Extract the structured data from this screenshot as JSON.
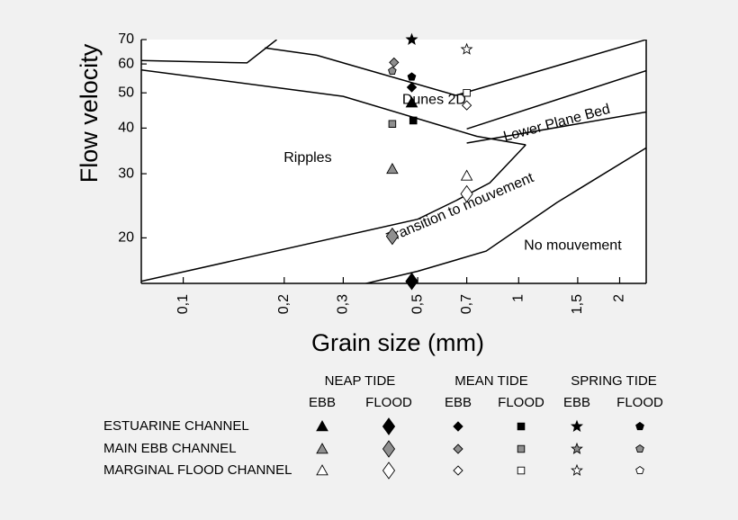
{
  "chart_data": {
    "type": "scatter",
    "title": "",
    "xlabel": "Grain size (mm)",
    "ylabel": "Flow velocity",
    "x_scale": "log",
    "y_scale": "log",
    "xlim": [
      0.075,
      2.4
    ],
    "ylim": [
      15,
      70
    ],
    "x_ticks": [
      {
        "value": 0.1,
        "label": "0,1"
      },
      {
        "value": 0.2,
        "label": "0,2"
      },
      {
        "value": 0.3,
        "label": "0,3"
      },
      {
        "value": 0.5,
        "label": "0,5"
      },
      {
        "value": 0.7,
        "label": "0,7"
      },
      {
        "value": 1,
        "label": "1"
      },
      {
        "value": 1.5,
        "label": "1,5"
      },
      {
        "value": 2,
        "label": "2"
      }
    ],
    "y_ticks": [
      {
        "value": 20,
        "label": "20"
      },
      {
        "value": 30,
        "label": "30"
      },
      {
        "value": 40,
        "label": "40"
      },
      {
        "value": 50,
        "label": "50"
      },
      {
        "value": 60,
        "label": "60"
      },
      {
        "value": 70,
        "label": "70"
      }
    ],
    "boundaries": [
      {
        "id": "ripples-upper",
        "points": [
          [
            0.075,
            61.3
          ],
          [
            0.155,
            60.4
          ],
          [
            0.19,
            70
          ]
        ]
      },
      {
        "id": "dunes-upper",
        "points": [
          [
            0.175,
            66.4
          ],
          [
            0.25,
            63.4
          ],
          [
            0.65,
            49.2
          ],
          [
            2.4,
            70
          ]
        ]
      },
      {
        "id": "ripples-lower",
        "points": [
          [
            0.075,
            57.8
          ],
          [
            0.3,
            48.9
          ],
          [
            0.75,
            38.0
          ],
          [
            1.05,
            36.0
          ]
        ]
      },
      {
        "id": "dunes-lower",
        "points": [
          [
            0.7,
            39.8
          ],
          [
            2.4,
            57.5
          ]
        ]
      },
      {
        "id": "plane-bed-lower",
        "points": [
          [
            0.7,
            36.4
          ],
          [
            2.4,
            44.3
          ]
        ]
      },
      {
        "id": "movement-threshold",
        "points": [
          [
            0.075,
            15.2
          ],
          [
            0.5,
            22.5
          ],
          [
            0.65,
            25.3
          ],
          [
            0.82,
            28.3
          ],
          [
            1.05,
            36.0
          ]
        ]
      },
      {
        "id": "no-movement-lower",
        "points": [
          [
            0.32,
            14.7
          ],
          [
            0.5,
            16.2
          ],
          [
            0.8,
            18.4
          ],
          [
            1.3,
            25.0
          ],
          [
            2.4,
            35.3
          ]
        ]
      }
    ],
    "region_labels": [
      {
        "text": "Ripples",
        "x": 0.235,
        "y": 33.1,
        "rotate": 0
      },
      {
        "text": "Dunes 2D",
        "x": 0.56,
        "y": 47.7,
        "rotate": 0
      },
      {
        "text": "Lower Plane Bed",
        "x": 1.3,
        "y": 41.2,
        "rotate": -15
      },
      {
        "text": "Transition to mouvement",
        "x": 0.67,
        "y": 24.1,
        "rotate": -23
      },
      {
        "text": "No mouvement",
        "x": 1.45,
        "y": 19.0,
        "rotate": 0
      }
    ],
    "series": [
      {
        "tide": "NEAP TIDE",
        "phase": "EBB",
        "channel": "ESTUARINE CHANNEL",
        "marker": "triangle",
        "fill": "#000000",
        "size": "small",
        "points": [
          [
            0.48,
            47.0
          ]
        ]
      },
      {
        "tide": "NEAP TIDE",
        "phase": "FLOOD",
        "channel": "ESTUARINE CHANNEL",
        "marker": "diamond",
        "fill": "#000000",
        "size": "large",
        "points": [
          [
            0.48,
            15.2
          ]
        ]
      },
      {
        "tide": "MEAN TIDE",
        "phase": "EBB",
        "channel": "ESTUARINE CHANNEL",
        "marker": "diamond",
        "fill": "#000000",
        "size": "small",
        "points": [
          [
            0.48,
            51.8
          ]
        ]
      },
      {
        "tide": "MEAN TIDE",
        "phase": "FLOOD",
        "channel": "ESTUARINE CHANNEL",
        "marker": "square",
        "fill": "#000000",
        "size": "small",
        "points": [
          [
            0.485,
            42.0
          ]
        ]
      },
      {
        "tide": "SPRING TIDE",
        "phase": "EBB",
        "channel": "ESTUARINE CHANNEL",
        "marker": "star",
        "fill": "#000000",
        "size": "small",
        "points": [
          [
            0.48,
            70.0
          ]
        ]
      },
      {
        "tide": "SPRING TIDE",
        "phase": "FLOOD",
        "channel": "ESTUARINE CHANNEL",
        "marker": "pentagon",
        "fill": "#000000",
        "size": "small",
        "points": [
          [
            0.48,
            55.3
          ]
        ]
      },
      {
        "tide": "NEAP TIDE",
        "phase": "EBB",
        "channel": "MAIN EBB CHANNEL",
        "marker": "triangle",
        "fill": "#8f8f8f",
        "size": "small",
        "points": [
          [
            0.42,
            30.9
          ]
        ]
      },
      {
        "tide": "NEAP TIDE",
        "phase": "FLOOD",
        "channel": "MAIN EBB CHANNEL",
        "marker": "diamond",
        "fill": "#8f8f8f",
        "size": "large",
        "points": [
          [
            0.42,
            20.2
          ]
        ]
      },
      {
        "tide": "MEAN TIDE",
        "phase": "EBB",
        "channel": "MAIN EBB CHANNEL",
        "marker": "diamond",
        "fill": "#8f8f8f",
        "size": "small",
        "points": [
          [
            0.425,
            60.6
          ]
        ]
      },
      {
        "tide": "MEAN TIDE",
        "phase": "FLOOD",
        "channel": "MAIN EBB CHANNEL",
        "marker": "square",
        "fill": "#8f8f8f",
        "size": "small",
        "points": [
          [
            0.42,
            41.1
          ]
        ]
      },
      {
        "tide": "SPRING TIDE",
        "phase": "FLOOD",
        "channel": "MAIN EBB CHANNEL",
        "marker": "pentagon",
        "fill": "#8f8f8f",
        "size": "small",
        "points": [
          [
            0.42,
            57.4
          ]
        ]
      },
      {
        "tide": "NEAP TIDE",
        "phase": "EBB",
        "channel": "MARGINAL FLOOD CHANNEL",
        "marker": "triangle",
        "fill": "#ffffff",
        "size": "small",
        "points": [
          [
            0.7,
            29.6
          ]
        ]
      },
      {
        "tide": "NEAP TIDE",
        "phase": "FLOOD",
        "channel": "MARGINAL FLOOD CHANNEL",
        "marker": "diamond",
        "fill": "#ffffff",
        "size": "large",
        "points": [
          [
            0.7,
            26.4
          ]
        ]
      },
      {
        "tide": "MEAN TIDE",
        "phase": "EBB",
        "channel": "MARGINAL FLOOD CHANNEL",
        "marker": "diamond",
        "fill": "#ffffff",
        "size": "small",
        "points": [
          [
            0.7,
            46.2
          ]
        ]
      },
      {
        "tide": "MEAN TIDE",
        "phase": "FLOOD",
        "channel": "MARGINAL FLOOD CHANNEL",
        "marker": "square",
        "fill": "#ffffff",
        "size": "small",
        "points": [
          [
            0.7,
            50.0
          ]
        ]
      },
      {
        "tide": "SPRING TIDE",
        "phase": "EBB",
        "channel": "MARGINAL FLOOD CHANNEL",
        "marker": "star",
        "fill": "#ffffff",
        "size": "small",
        "points": [
          [
            0.7,
            65.8
          ]
        ]
      }
    ],
    "legend": {
      "placement": "bottom",
      "tide_headers": [
        "NEAP TIDE",
        "MEAN TIDE",
        "SPRING TIDE"
      ],
      "phase_headers": [
        "EBB",
        "FLOOD",
        "EBB",
        "FLOOD",
        "EBB",
        "FLOOD"
      ],
      "rows": [
        {
          "label": "ESTUARINE CHANNEL",
          "fill": "#000000"
        },
        {
          "label": "MAIN EBB CHANNEL",
          "fill": "#8f8f8f"
        },
        {
          "label": "MARGINAL FLOOD CHANNEL",
          "fill": "#ffffff"
        }
      ],
      "column_markers": [
        "triangle",
        "diamond",
        "diamond",
        "square",
        "star",
        "pentagon"
      ],
      "column_sizes": [
        "small",
        "large",
        "small",
        "small",
        "small",
        "small"
      ]
    },
    "grid": false
  }
}
